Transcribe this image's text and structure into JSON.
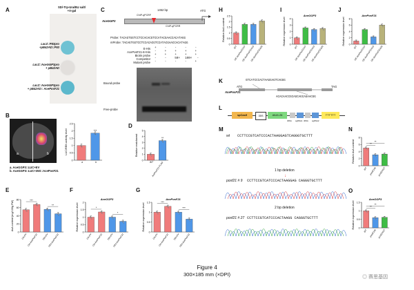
{
  "panel_labels": [
    "A",
    "B",
    "C",
    "D",
    "E",
    "F",
    "G",
    "H",
    "I",
    "J",
    "K",
    "L",
    "M",
    "N",
    "O"
  ],
  "colors": {
    "red": "#f07b7b",
    "blue": "#4f97e8",
    "green": "#3ebd45",
    "olive": "#b8b27a",
    "gray": "#9a9a9a",
    "highlight": "#e8282e",
    "yeast_blue": "#6fc2d3",
    "yeast_white": "#e9e7e5",
    "leaf": "#4a4a4a"
  },
  "panelA": {
    "header_line1": "SD/-Trp-Ura/BU salt/",
    "header_line2": "+X-gal",
    "rows": [
      {
        "line1": "LacZ::P53pro",
        "line2": "+pB42AD::P53"
      },
      {
        "line1": "LacZ::AceGGP3pro",
        "line2": "+ pB42AD"
      },
      {
        "line1": "LacZ::AceGGP3pro",
        "line2": "+ pB42AD:: AcePosF21"
      }
    ]
  },
  "panelB": {
    "leaf_left": "a",
    "leaf_right": "b",
    "legend_a": "a. AceGGP3::LUC+EV",
    "legend_b": "b. AceGGP3::LUC+35S::AcePosF21",
    "ylabel": "LUC/REN activity level",
    "xticks": [
      "a",
      "b"
    ],
    "sig": "***"
  },
  "panelC": {
    "gene": "AceGGP3",
    "atg": "ATG",
    "length": "1452 bp",
    "probe_label": "ChIP-qPCRF",
    "probe_label2": "ChIP-qPCRR",
    "probe_seq_label": "Probe:",
    "probe_seq": "TACAGTGGTCCTCCACACGTCCATACGAACCACATAGG",
    "mprobe_seq_label": "mProbe:",
    "mprobe_seq": "TACAGTGGTCCTCCACACGTCCATACGAACCACATAGG",
    "cond_rows": [
      "E-His",
      "AcePosF21-6×His",
      "Biotin probe",
      "Competitor",
      "Mutant probe"
    ],
    "competitor_vals": [
      "50×",
      "100×"
    ],
    "bound": "Bound-probe",
    "free": "Free-probe"
  },
  "panelD": {
    "ylabel": "Relative enrichment",
    "xticks": [
      "WT",
      "AcePosF21-FLAG"
    ],
    "sig": "**"
  },
  "panelE": {
    "ylabel": "AsA content (mg/100g FW)",
    "xticks": [
      "OX-EV",
      "OX-AcePosF21",
      "TRV-EV",
      "TRV-AcePosF21"
    ],
    "sigs": [
      "***",
      "**"
    ]
  },
  "panelF": {
    "title": "AceGGP3",
    "ylabel": "Relative expression level",
    "xticks": [
      "OX-EV",
      "OX-AcePosF21",
      "TRV-EV",
      "TRV-AcePosF21"
    ],
    "sigs": [
      "*",
      "*"
    ]
  },
  "panelG": {
    "title": "AcePosF21",
    "ylabel": "Relative expression level",
    "xticks": [
      "OX-EV",
      "OX-AcePosF21",
      "TRV-EV",
      "TRV-AcePosF21"
    ],
    "sigs": [
      "***",
      "***"
    ]
  },
  "panelH": {
    "ylabel": "Relative AsA content",
    "xticks": [
      "WT",
      "OE-AcePosF21#7",
      "OE-AcePosF21#13",
      "OE-AcePosF21#20"
    ]
  },
  "panelI": {
    "title": "AceGGP3",
    "ylabel": "Relative expression level",
    "xticks": [
      "WT",
      "OE-AcePosF21#7",
      "OE-AcePosF21#13",
      "OE-AcePosF21#20"
    ]
  },
  "panelJ": {
    "title": "AcePosF21",
    "ylabel": "Relative expression level",
    "xticks": [
      "WT",
      "OE-AcePosF21#7",
      "OE-AcePosF21#13",
      "OE-AcePosF21#20"
    ]
  },
  "panelK": {
    "gene": "AcePosF21",
    "atg": "ATG",
    "tag": "TAG",
    "seq_top": "GTCATCCCACTAAGGAGTCAGGG",
    "seq_bottom": "ACACAACCGCAGCAGCAGAACGG"
  },
  "panelL": {
    "boxes": [
      "spCas9",
      "35S",
      "AtU6-26",
      "tRNA",
      "sgRNA1",
      "tRNA",
      "sgRNA2",
      "TTTTTT"
    ]
  },
  "panelM": {
    "wt_label": "wt",
    "wt_seq": "CCTTCCGTCATCCCACTAAGGAGTCAGGGTGCTTT",
    "m1_label": "posf21 # 9",
    "m1_seq": "CCTTCCGTCATCCCACTAAGGAG CAGGGTGCTTT",
    "m1_note": "1 bp deletion",
    "m2_label": "posf21 # 27",
    "m2_seq": "CCTTCCGTCATCCCACTAAGG  CAGGGTGCTTT",
    "m2_note": "2 bp deletion"
  },
  "panelN": {
    "ylabel": "Relative AsA content",
    "xticks": [
      "WT",
      "posf21#9",
      "posf21#27"
    ],
    "sigs": [
      "**",
      "**"
    ]
  },
  "panelO": {
    "title": "AceGGP3",
    "ylabel": "Relative expression level",
    "xticks": [
      "WT",
      "posf21#9",
      "posf21#27"
    ],
    "sigs": [
      "**",
      "**"
    ]
  },
  "chart_data": [
    {
      "id": "B",
      "type": "bar",
      "categories": [
        "a",
        "b"
      ],
      "values": [
        1.0,
        1.85
      ],
      "ylim": [
        0,
        2.5
      ],
      "yticks": [
        0,
        0.5,
        1.0,
        1.5,
        2.0,
        2.5
      ],
      "ylabel": "LUC/REN activity level"
    },
    {
      "id": "D",
      "type": "bar",
      "categories": [
        "WT",
        "AcePosF21-FLAG"
      ],
      "values": [
        1.0,
        3.3
      ],
      "ylim": [
        0,
        5
      ],
      "yticks": [
        0,
        1,
        2,
        3,
        4,
        5
      ],
      "ylabel": "Relative enrichment"
    },
    {
      "id": "E",
      "type": "bar",
      "categories": [
        "OX-EV",
        "OX-AcePosF21",
        "TRV-EV",
        "TRV-AcePosF21"
      ],
      "values": [
        55,
        68,
        56,
        45
      ],
      "ylim": [
        0,
        80
      ],
      "yticks": [
        0,
        20,
        40,
        60,
        80
      ],
      "ylabel": "AsA content (mg/100g FW)"
    },
    {
      "id": "F",
      "type": "bar",
      "categories": [
        "OX-EV",
        "OX-AcePosF21",
        "TRV-EV",
        "TRV-AcePosF21"
      ],
      "values": [
        1.0,
        1.35,
        1.0,
        0.72
      ],
      "ylim": [
        0,
        2.0
      ],
      "yticks": [
        0,
        0.5,
        1.0,
        1.5,
        2.0
      ],
      "ylabel": "Relative expression level",
      "title": "AceGGP3"
    },
    {
      "id": "G",
      "type": "bar",
      "categories": [
        "OX-EV",
        "OX-AcePosF21",
        "TRV-EV",
        "TRV-AcePosF21"
      ],
      "values": [
        1.0,
        1.3,
        1.0,
        0.65
      ],
      "ylim": [
        0,
        1.5
      ],
      "yticks": [
        0,
        0.5,
        1.0,
        1.5
      ],
      "ylabel": "Relative expression level",
      "title": "AcePosF21"
    },
    {
      "id": "H",
      "type": "bar",
      "categories": [
        "WT",
        "OE-AcePosF21#7",
        "OE-AcePosF21#13",
        "OE-AcePosF21#20"
      ],
      "values": [
        1.0,
        1.75,
        1.75,
        2.05
      ],
      "ylim": [
        0,
        2.5
      ],
      "yticks": [
        0,
        0.5,
        1.0,
        1.5,
        2.0,
        2.5
      ],
      "ylabel": "Relative AsA content"
    },
    {
      "id": "I",
      "type": "bar",
      "categories": [
        "WT",
        "OE-AcePosF21#7",
        "OE-AcePosF21#13",
        "OE-AcePosF21#20"
      ],
      "values": [
        1.0,
        2.55,
        2.3,
        2.45
      ],
      "ylim": [
        0,
        4
      ],
      "yticks": [
        0,
        1,
        2,
        3,
        4
      ],
      "ylabel": "Relative expression level",
      "title": "AceGGP3"
    },
    {
      "id": "J",
      "type": "bar",
      "categories": [
        "WT",
        "OE-AcePosF21#7",
        "OE-AcePosF21#13",
        "OE-AcePosF21#20"
      ],
      "values": [
        1.0,
        4.6,
        2.3,
        6.0
      ],
      "ylim": [
        0,
        8
      ],
      "yticks": [
        0,
        2,
        4,
        6,
        8
      ],
      "ylabel": "Relative expression level",
      "title": "AcePosF21"
    },
    {
      "id": "N",
      "type": "bar",
      "categories": [
        "WT",
        "posf21#9",
        "posf21#27"
      ],
      "values": [
        5.0,
        3.1,
        3.3
      ],
      "ylim": [
        0,
        8
      ],
      "yticks": [
        0,
        2,
        4,
        6,
        8
      ],
      "ylabel": "Relative AsA content"
    },
    {
      "id": "O",
      "type": "bar",
      "categories": [
        "WT",
        "posf21#9",
        "posf21#27"
      ],
      "values": [
        1.0,
        0.6,
        0.62
      ],
      "ylim": [
        0,
        1.5
      ],
      "yticks": [
        0,
        0.5,
        1.0,
        1.5
      ],
      "ylabel": "Relative expression level",
      "title": "AceGGP3"
    }
  ],
  "caption": {
    "figure": "Figure 4",
    "size": "300×185  mm (×DPI)"
  },
  "watermark": "赛思基因"
}
